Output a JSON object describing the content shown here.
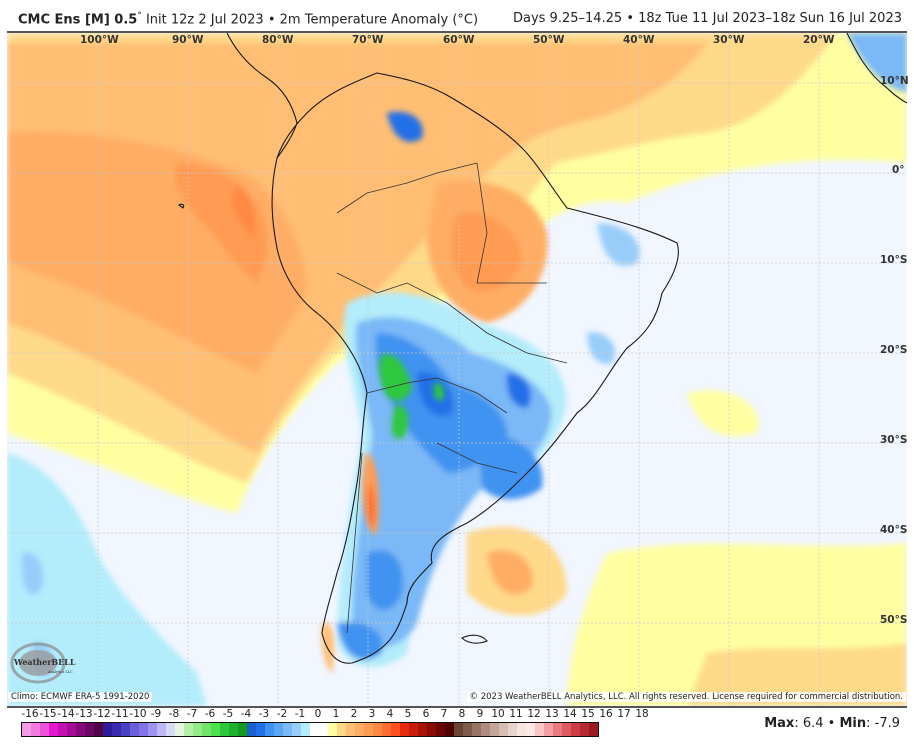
{
  "header": {
    "model": "CMC Ens [M] 0.5",
    "degree_symbol": "°",
    "init": "Init 12z 2 Jul 2023",
    "separator": "•",
    "parameter": "2m Temperature Anomaly (°C)",
    "valid_range": "Days 9.25–14.25 • 18z Tue 11 Jul 2023–18z Sun 16 Jul 2023"
  },
  "map": {
    "region": "South America",
    "longitude_labels": [
      "100°W",
      "90°W",
      "80°W",
      "70°W",
      "60°W",
      "50°W",
      "40°W",
      "30°W",
      "20°W"
    ],
    "latitude_labels": [
      "10°N",
      "0°",
      "10°S",
      "20°S",
      "30°S",
      "40°S",
      "50°S"
    ],
    "features": [
      {
        "name": "Equatorial Pacific warm anomaly",
        "sign": "positive",
        "approx_value": 4
      },
      {
        "name": "Andes / Bolivia-Paraguay cold anomaly",
        "sign": "negative",
        "approx_value": -6
      },
      {
        "name": "Southern Brazil / Uruguay cold anomaly",
        "sign": "negative",
        "approx_value": -3
      },
      {
        "name": "Patagonia cold anomaly",
        "sign": "negative",
        "approx_value": -3
      },
      {
        "name": "Central Chile warm anomaly",
        "sign": "positive",
        "approx_value": 5
      },
      {
        "name": "Amazon warm anomaly",
        "sign": "positive",
        "approx_value": 3
      },
      {
        "name": "Venezuela cold spot",
        "sign": "negative",
        "approx_value": -3
      },
      {
        "name": "SE Pacific cool anomaly",
        "sign": "negative",
        "approx_value": -1
      }
    ]
  },
  "logo": {
    "brand": "WeatherBELL",
    "sub": "Analytics LLC"
  },
  "footer": {
    "climo": "Climo: ECMWF ERA-5 1991-2020",
    "copyright": "© 2023 WeatherBELL Analytics, LLC. All rights reserved. License required for commercial distribution.",
    "max_label": "Max",
    "max_value": ": 6.4",
    "min_label": "Min",
    "min_value": ": -7.9",
    "bullet": " • "
  },
  "colorbar": {
    "labels": [
      "-16",
      "-15",
      "-14",
      "-13",
      "-12",
      "-11",
      "-10",
      "-9",
      "-8",
      "-7",
      "-6",
      "-5",
      "-4",
      "-3",
      "-2",
      "-1",
      "0",
      "1",
      "2",
      "3",
      "4",
      "5",
      "6",
      "7",
      "8",
      "9",
      "10",
      "11",
      "12",
      "13",
      "14",
      "15",
      "16",
      "17",
      "18"
    ],
    "colors": [
      "#f59ae6",
      "#f27bdf",
      "#ec52d8",
      "#e417cf",
      "#c511b3",
      "#a30d96",
      "#86097c",
      "#6d0763",
      "#52044b",
      "#2d1a98",
      "#3b27b0",
      "#4a40c4",
      "#6b5ed9",
      "#8475e6",
      "#a093f2",
      "#bfb8f7",
      "#d6dcf7",
      "#e6f5e0",
      "#b5f0a8",
      "#93eb87",
      "#6fe466",
      "#4ce24a",
      "#2ec73c",
      "#1db22e",
      "#139a1e",
      "#1b5fcf",
      "#226fe8",
      "#3f93f0",
      "#5aa6f2",
      "#7ab8f7",
      "#99cdf9",
      "#b3ecfb",
      "#ffffff",
      "#ffffff",
      "#ffffa2",
      "#ffd98a",
      "#ffbe73",
      "#ffad65",
      "#ff9b52",
      "#ff8943",
      "#ff6f31",
      "#ff4f1d",
      "#e62b0f",
      "#c81e0b",
      "#a71307",
      "#8a0b05",
      "#6a0603",
      "#4f0402",
      "#6a4534",
      "#7e5c4a",
      "#977365",
      "#ae8d80",
      "#c3a69a",
      "#d7beb4",
      "#e8d4cc",
      "#f6e6e0",
      "#fde9e6",
      "#fcc5c5",
      "#f5a0a4",
      "#e87a80",
      "#dc5a61",
      "#cc3d46",
      "#b52a33",
      "#9c1a22"
    ]
  },
  "chart_data": {
    "type": "heatmap",
    "title": "CMC Ens [M] 0.5° Init 12z 2 Jul 2023 • 2m Temperature Anomaly (°C)",
    "subtitle": "Days 9.25–14.25 • 18z Tue 11 Jul 2023–18z Sun 16 Jul 2023",
    "xlabel": "Longitude",
    "ylabel": "Latitude",
    "x_ticks": [
      "100°W",
      "90°W",
      "80°W",
      "70°W",
      "60°W",
      "50°W",
      "40°W",
      "30°W",
      "20°W"
    ],
    "y_ticks": [
      "10°N",
      "0°",
      "10°S",
      "20°S",
      "30°S",
      "40°S",
      "50°S"
    ],
    "xlim": [
      -107,
      -10
    ],
    "ylim": [
      -57,
      14
    ],
    "colorbar_range": [
      -16,
      18
    ],
    "colorbar_unit": "°C",
    "max": 6.4,
    "min": -7.9,
    "grid": true
  }
}
